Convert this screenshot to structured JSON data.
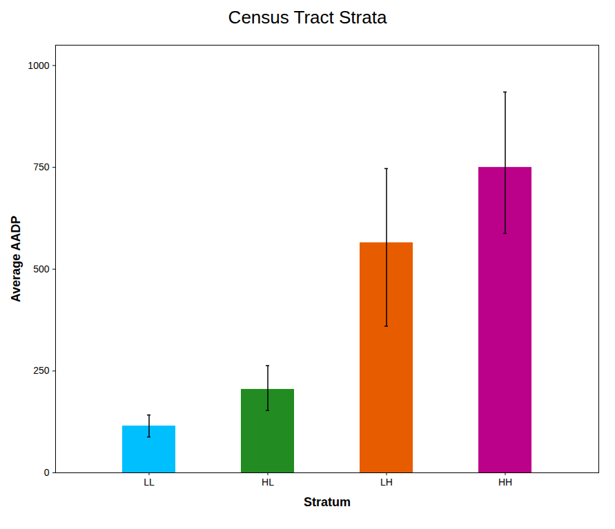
{
  "chart_data": {
    "type": "bar",
    "title": "Census Tract Strata",
    "xlabel": "Stratum",
    "ylabel": "Average AADP",
    "categories": [
      "LL",
      "HL",
      "LH",
      "HH"
    ],
    "values": [
      115,
      205,
      565,
      750
    ],
    "errors_upper": [
      27,
      58,
      182,
      185
    ],
    "errors_lower": [
      27,
      52,
      205,
      162
    ],
    "colors": [
      "#00BFFF",
      "#228B22",
      "#E85C00",
      "#BB008A"
    ],
    "ylim": [
      0,
      1050
    ],
    "yticks": [
      0,
      250,
      500,
      750,
      1000
    ],
    "grid": false
  }
}
